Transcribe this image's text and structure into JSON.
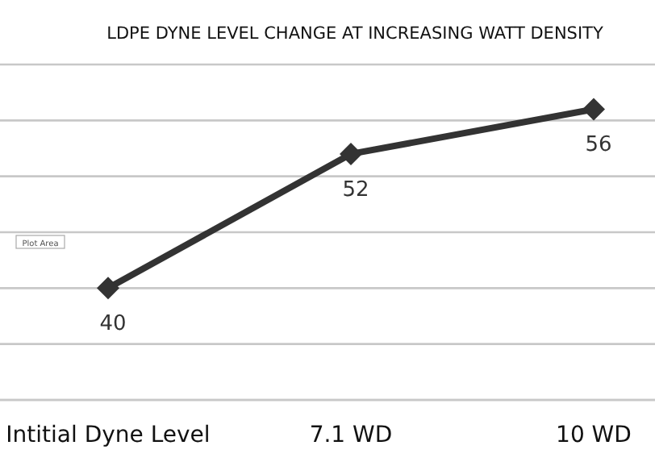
{
  "chart_data": {
    "type": "line",
    "title": "LDPE DYNE LEVEL CHANGE AT INCREASING WATT DENSITY",
    "categories": [
      "Intitial Dyne Level",
      "7.1 WD",
      "10 WD"
    ],
    "series": [
      {
        "color": "#333333",
        "values": [
          40,
          52,
          56
        ]
      }
    ],
    "ylim": [
      30,
      60
    ],
    "yticks": [
      {
        "value": 30,
        "label": null
      },
      {
        "value": 35,
        "label": null
      },
      {
        "value": 40,
        "label": null
      },
      {
        "value": 45,
        "label": null
      },
      {
        "value": 50,
        "label": null
      },
      {
        "value": 55,
        "label": null
      },
      {
        "value": 60,
        "label": null
      }
    ],
    "tick_labels": "x",
    "grid": "y",
    "marker": "diamond",
    "line_style": "solid",
    "data_labels": true,
    "annotations": [
      "Plot Area"
    ]
  }
}
